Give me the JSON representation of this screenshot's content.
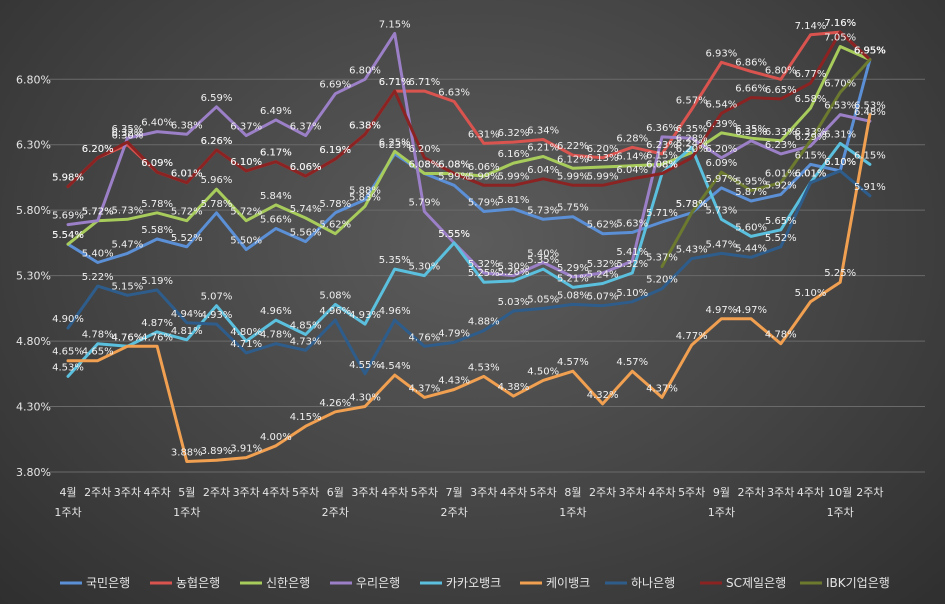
{
  "chart_data": {
    "type": "line",
    "categories": [
      [
        "4월",
        "1주차"
      ],
      [
        "2주차"
      ],
      [
        "3주차"
      ],
      [
        "4주차"
      ],
      [
        "5월",
        "1주차"
      ],
      [
        "2주차"
      ],
      [
        "3주차"
      ],
      [
        "4주차"
      ],
      [
        "5주차"
      ],
      [
        "6월",
        "2주차"
      ],
      [
        "3주차"
      ],
      [
        "4주차"
      ],
      [
        "5주차"
      ],
      [
        "7월",
        "2주차"
      ],
      [
        "3주차"
      ],
      [
        "4주차"
      ],
      [
        "5주차"
      ],
      [
        "8월",
        "1주차"
      ],
      [
        "2주차"
      ],
      [
        "3주차"
      ],
      [
        "4주차"
      ],
      [
        "5주차"
      ],
      [
        "9월",
        "1주차"
      ],
      [
        "2주차"
      ],
      [
        "3주차"
      ],
      [
        "4주차"
      ],
      [
        "10월",
        "1주차"
      ],
      [
        "2주차"
      ]
    ],
    "y_ticks": [
      "3.80%",
      "4.30%",
      "4.80%",
      "5.30%",
      "5.80%",
      "6.30%",
      "6.80%"
    ],
    "ylim": [
      3.8,
      7.1
    ],
    "grid": true,
    "legend_position": "bottom",
    "series": [
      {
        "name": "국민은행",
        "color": "#5b8fd6",
        "values": [
          5.54,
          5.4,
          5.47,
          5.58,
          5.52,
          5.78,
          5.5,
          5.66,
          5.56,
          5.78,
          5.88,
          6.23,
          6.08,
          5.99,
          5.79,
          5.81,
          5.73,
          5.75,
          5.62,
          5.63,
          5.71,
          5.78,
          5.97,
          5.87,
          5.92,
          6.15,
          6.1,
          6.95
        ]
      },
      {
        "name": "농협은행",
        "color": "#d9534f",
        "values": [
          5.98,
          6.2,
          6.3,
          6.09,
          6.01,
          6.26,
          6.1,
          6.17,
          6.06,
          6.19,
          6.38,
          6.71,
          6.71,
          6.63,
          6.31,
          6.32,
          6.34,
          6.22,
          6.2,
          6.28,
          6.23,
          6.57,
          6.93,
          6.86,
          6.8,
          7.14,
          7.16,
          6.95
        ]
      },
      {
        "name": "신한은행",
        "color": "#a8cc5c",
        "values": [
          5.54,
          5.72,
          5.73,
          5.78,
          5.72,
          5.96,
          5.72,
          5.84,
          5.74,
          5.62,
          5.83,
          6.25,
          6.08,
          6.08,
          6.06,
          6.16,
          6.21,
          6.12,
          6.13,
          6.14,
          6.15,
          6.24,
          6.39,
          6.35,
          6.33,
          6.58,
          7.05,
          6.95
        ]
      },
      {
        "name": "우리은행",
        "color": "#9b7fc7",
        "values": [
          5.69,
          5.72,
          6.35,
          6.4,
          6.38,
          6.59,
          6.37,
          6.49,
          6.37,
          6.69,
          6.8,
          7.15,
          5.79,
          5.55,
          5.32,
          5.3,
          5.4,
          5.29,
          5.32,
          5.41,
          6.36,
          6.35,
          6.2,
          6.33,
          6.23,
          6.29,
          6.53,
          6.48
        ]
      },
      {
        "name": "카카오뱅크",
        "color": "#5bc0de",
        "values": [
          4.53,
          4.78,
          4.76,
          4.87,
          4.81,
          5.07,
          4.8,
          4.96,
          4.85,
          5.08,
          4.93,
          5.35,
          5.3,
          5.55,
          5.25,
          5.26,
          5.35,
          5.21,
          5.24,
          5.32,
          6.08,
          6.28,
          5.73,
          5.6,
          5.65,
          6.01,
          6.31,
          6.15
        ]
      },
      {
        "name": "케이뱅크",
        "color": "#f0a050",
        "values": [
          4.65,
          4.65,
          4.76,
          4.76,
          3.88,
          3.89,
          3.91,
          4.0,
          4.15,
          4.26,
          4.3,
          4.54,
          4.37,
          4.43,
          4.53,
          4.38,
          4.5,
          4.57,
          4.32,
          4.57,
          4.37,
          4.77,
          4.97,
          4.97,
          4.78,
          5.1,
          5.25,
          6.53
        ]
      },
      {
        "name": "하나은행",
        "color": "#2e5d8c",
        "values": [
          4.9,
          5.22,
          5.15,
          5.19,
          4.94,
          4.93,
          4.71,
          4.78,
          4.73,
          4.96,
          4.55,
          4.96,
          4.76,
          4.79,
          4.88,
          5.03,
          5.05,
          5.08,
          5.07,
          5.1,
          5.2,
          5.43,
          5.47,
          5.44,
          5.52,
          6.01,
          6.1,
          5.91
        ]
      },
      {
        "name": "SC제일은행",
        "color": "#8b2323",
        "values": [
          5.98,
          6.2,
          6.32,
          6.09,
          6.01,
          6.26,
          6.1,
          6.17,
          6.06,
          6.19,
          6.38,
          6.71,
          6.2,
          6.08,
          5.99,
          5.99,
          6.04,
          5.99,
          5.99,
          6.04,
          6.08,
          6.2,
          6.54,
          6.66,
          6.65,
          6.77,
          7.16,
          6.95
        ]
      },
      {
        "name": "IBK기업은행",
        "color": "#6b7a2e",
        "values": [
          null,
          null,
          null,
          null,
          null,
          null,
          null,
          null,
          null,
          null,
          null,
          null,
          null,
          null,
          null,
          null,
          null,
          null,
          null,
          null,
          5.37,
          5.78,
          6.09,
          5.95,
          6.01,
          6.33,
          6.7,
          6.95
        ]
      }
    ]
  }
}
